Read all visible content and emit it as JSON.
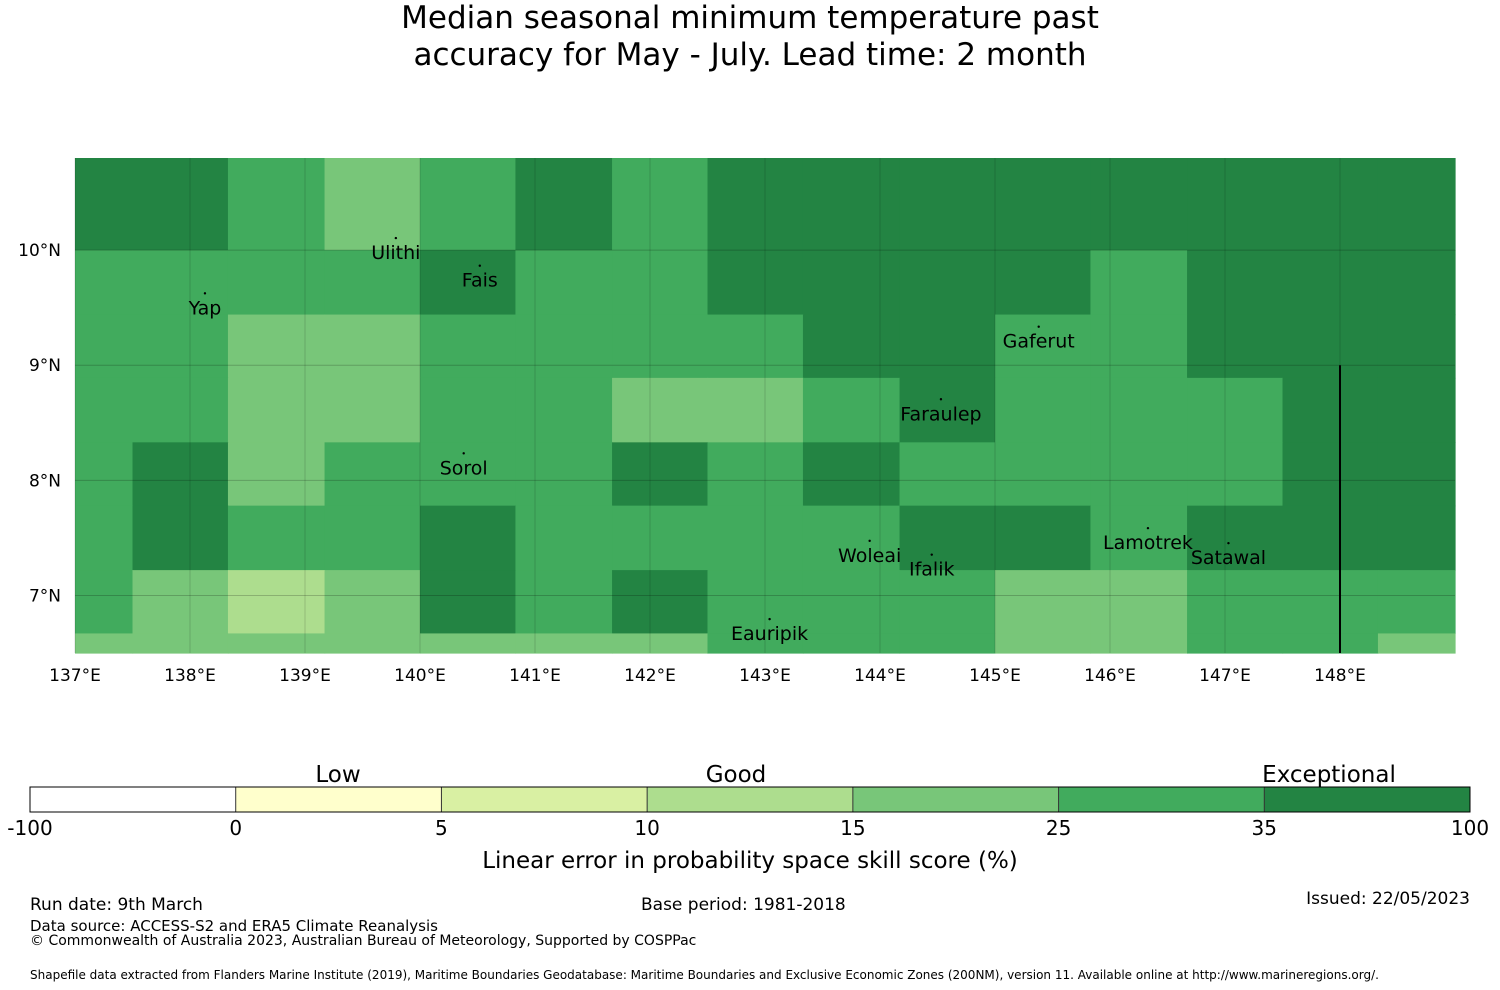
{
  "title": {
    "line1": "Median seasonal minimum temperature past",
    "line2": "accuracy for May - July. Lead time: 2 month"
  },
  "map": {
    "lon_range": [
      137,
      149
    ],
    "lat_range": [
      6.5,
      10.8
    ],
    "lon_ticks": [
      {
        "value": 137,
        "label": "137°E"
      },
      {
        "value": 138,
        "label": "138°E"
      },
      {
        "value": 139,
        "label": "139°E"
      },
      {
        "value": 140,
        "label": "140°E"
      },
      {
        "value": 141,
        "label": "141°E"
      },
      {
        "value": 142,
        "label": "142°E"
      },
      {
        "value": 143,
        "label": "143°E"
      },
      {
        "value": 144,
        "label": "144°E"
      },
      {
        "value": 145,
        "label": "145°E"
      },
      {
        "value": 146,
        "label": "146°E"
      },
      {
        "value": 147,
        "label": "147°E"
      },
      {
        "value": 148,
        "label": "148°E"
      }
    ],
    "lat_ticks": [
      {
        "value": 10,
        "label": "10°N"
      },
      {
        "value": 9,
        "label": "9°N"
      },
      {
        "value": 8,
        "label": "8°N"
      },
      {
        "value": 7,
        "label": "7°N"
      }
    ],
    "grid_lon_edges": [
      137.0,
      137.5,
      138.33,
      139.17,
      140.0,
      140.83,
      141.67,
      142.5,
      143.33,
      144.17,
      145.0,
      145.83,
      146.67,
      147.5,
      148.33,
      149.0
    ],
    "grid_lat_edges": [
      10.8,
      10.0,
      9.44,
      8.89,
      8.33,
      7.78,
      7.22,
      6.67,
      6.5
    ],
    "cell_classes": [
      [
        6,
        6,
        5,
        4,
        5,
        6,
        5,
        6,
        6,
        6,
        6,
        6,
        6,
        6,
        6
      ],
      [
        5,
        5,
        5,
        5,
        6,
        5,
        5,
        6,
        6,
        6,
        6,
        5,
        6,
        6,
        6
      ],
      [
        5,
        5,
        4,
        4,
        5,
        5,
        5,
        5,
        6,
        6,
        5,
        5,
        6,
        6,
        6
      ],
      [
        5,
        5,
        4,
        4,
        5,
        5,
        4,
        4,
        5,
        6,
        5,
        5,
        5,
        6,
        6
      ],
      [
        5,
        6,
        4,
        5,
        5,
        5,
        6,
        5,
        6,
        5,
        5,
        5,
        5,
        6,
        6
      ],
      [
        5,
        6,
        5,
        5,
        6,
        5,
        5,
        5,
        5,
        6,
        6,
        5,
        6,
        6,
        6
      ],
      [
        5,
        4,
        3,
        4,
        6,
        5,
        6,
        5,
        5,
        5,
        4,
        4,
        5,
        5,
        5
      ],
      [
        4,
        4,
        4,
        4,
        4,
        4,
        4,
        5,
        5,
        5,
        4,
        4,
        5,
        5,
        4
      ]
    ],
    "boundary_line": {
      "lon": 148.0,
      "lat_from": 6.5,
      "lat_to": 9.0
    },
    "places": [
      {
        "name": "Ulithi",
        "lon": 139.79,
        "lat": 10.0
      },
      {
        "name": "Fais",
        "lon": 140.52,
        "lat": 9.76
      },
      {
        "name": "Yap",
        "lon": 138.13,
        "lat": 9.52
      },
      {
        "name": "Gaferut",
        "lon": 145.38,
        "lat": 9.23
      },
      {
        "name": "Faraulep",
        "lon": 144.53,
        "lat": 8.6
      },
      {
        "name": "Sorol",
        "lon": 140.38,
        "lat": 8.13
      },
      {
        "name": "Woleai",
        "lon": 143.91,
        "lat": 7.37
      },
      {
        "name": "Ifalik",
        "lon": 144.45,
        "lat": 7.25
      },
      {
        "name": "Lamotrek",
        "lon": 146.33,
        "lat": 7.48
      },
      {
        "name": "Satawal",
        "lon": 147.03,
        "lat": 7.35
      },
      {
        "name": "Eauripik",
        "lon": 143.04,
        "lat": 6.69
      }
    ]
  },
  "colorbar": {
    "category_labels": [
      "Low",
      "Good",
      "Exceptional"
    ],
    "colors": [
      "#ffffff",
      "#ffffcc",
      "#d9f0a3",
      "#addd8e",
      "#78c679",
      "#41ab5d",
      "#238443"
    ],
    "tick_labels": [
      "-100",
      "0",
      "5",
      "10",
      "15",
      "25",
      "35",
      "100"
    ],
    "label": "Linear error in probability space skill score (%)"
  },
  "footer": {
    "run_date": "Run date: 9th March",
    "base_period": "Base period: 1981-2018",
    "issued": "Issued: 22/05/2023",
    "data_source": "Data source: ACCESS-S2 and ERA5 Climate Reanalysis",
    "copyright": "© Commonwealth of Australia 2023, Australian Bureau of Meteorology, Supported by COSPPac",
    "shapefile": "Shapefile data extracted from Flanders Marine Institute (2019), Maritime Boundaries Geodatabase: Maritime Boundaries and Exclusive Economic Zones (200NM), version 11. Available online at http://www.marineregions.org/."
  }
}
